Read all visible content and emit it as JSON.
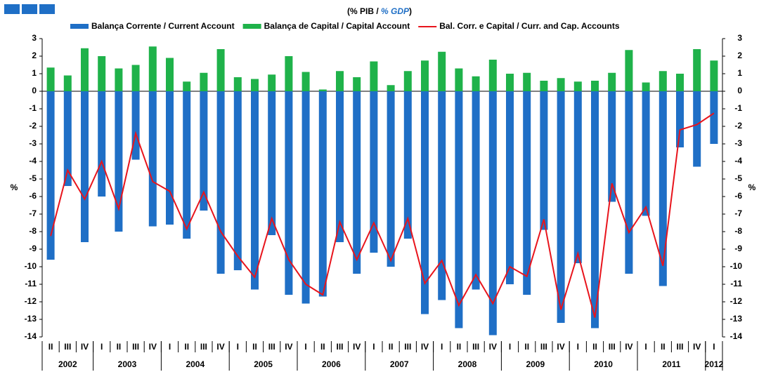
{
  "chart_data": {
    "type": "bar-line",
    "title": [
      "(% PIB / ",
      "% GDP",
      ")"
    ],
    "ylabel": "%",
    "categories": [
      "II",
      "III",
      "IV",
      "I",
      "II",
      "III",
      "IV",
      "I",
      "II",
      "III",
      "IV",
      "I",
      "II",
      "III",
      "IV",
      "I",
      "II",
      "III",
      "IV",
      "I",
      "II",
      "III",
      "IV",
      "I",
      "II",
      "III",
      "IV",
      "I",
      "II",
      "III",
      "IV",
      "I",
      "II",
      "III",
      "IV",
      "I",
      "II",
      "III",
      "IV",
      "I"
    ],
    "years": [
      "2002",
      "2003",
      "2004",
      "2005",
      "2006",
      "2007",
      "2008",
      "2009",
      "2010",
      "2011",
      "2012"
    ],
    "series": [
      {
        "name": "Balança Corrente / Current Account",
        "color": "#1f6fc6",
        "kind": "bar",
        "values": [
          -9.6,
          -5.4,
          -8.6,
          -6.0,
          -8.0,
          -3.9,
          -7.7,
          -7.6,
          -8.4,
          -6.8,
          -10.4,
          -10.2,
          -11.3,
          -8.2,
          -11.6,
          -12.1,
          -11.7,
          -8.6,
          -10.4,
          -9.2,
          -10.0,
          -8.4,
          -12.7,
          -11.9,
          -13.5,
          -11.3,
          -13.9,
          -11.0,
          -11.6,
          -7.9,
          -13.2,
          -9.8,
          -13.5,
          -6.3,
          -10.4,
          -7.1,
          -11.1,
          -3.2,
          -4.3,
          -3.0
        ]
      },
      {
        "name": "Balança de Capital / Capital Account",
        "color": "#1fb24a",
        "kind": "bar",
        "values": [
          1.35,
          0.9,
          2.45,
          2.0,
          1.3,
          1.5,
          2.55,
          1.9,
          0.55,
          1.05,
          2.4,
          0.8,
          0.7,
          0.95,
          2.0,
          1.1,
          0.1,
          1.15,
          0.8,
          1.7,
          0.35,
          1.15,
          1.75,
          2.25,
          1.3,
          0.85,
          1.8,
          1.0,
          1.05,
          0.6,
          0.75,
          0.55,
          0.6,
          1.05,
          2.35,
          0.5,
          1.15,
          1.0,
          2.4,
          1.75
        ]
      },
      {
        "name": "Bal. Corr. e Capital / Curr. and Cap. Accounts",
        "color": "#e8141c",
        "kind": "line",
        "values": [
          -8.25,
          -4.5,
          -6.15,
          -4.0,
          -6.7,
          -2.4,
          -5.15,
          -5.7,
          -7.85,
          -5.75,
          -8.0,
          -9.4,
          -10.6,
          -7.25,
          -9.6,
          -11.0,
          -11.6,
          -7.45,
          -9.6,
          -7.5,
          -9.65,
          -7.25,
          -10.95,
          -9.65,
          -12.2,
          -10.45,
          -12.1,
          -10.0,
          -10.55,
          -7.3,
          -12.45,
          -9.25,
          -12.9,
          -5.25,
          -8.05,
          -6.6,
          -9.95,
          -2.2,
          -1.9,
          -1.25
        ]
      }
    ],
    "ylim": [
      -14,
      3
    ],
    "yticks": [
      3,
      2,
      1,
      0,
      -1,
      -2,
      -3,
      -4,
      -5,
      -6,
      -7,
      -8,
      -9,
      -10,
      -11,
      -12,
      -13,
      -14
    ]
  }
}
